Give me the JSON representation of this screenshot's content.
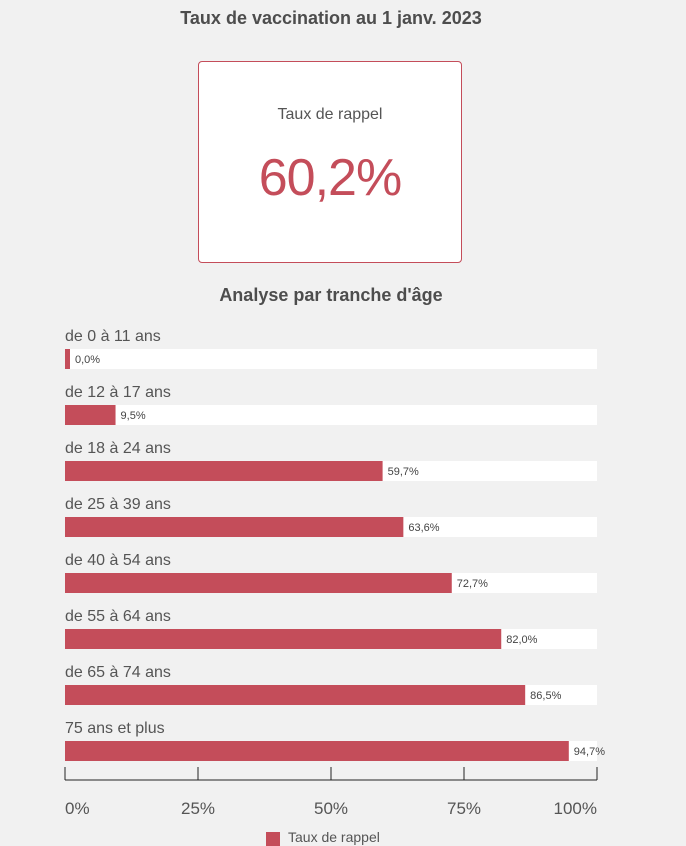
{
  "header": {
    "title": "Taux de vaccination au 1 janv. 2023"
  },
  "kpi": {
    "label": "Taux de rappel",
    "value": "60,2%"
  },
  "section": {
    "title": "Analyse par tranche d'âge"
  },
  "colors": {
    "accent": "#c44d5a",
    "track": "#ffffff",
    "background": "#f1f1f1"
  },
  "chart_data": {
    "type": "bar",
    "orientation": "horizontal",
    "categories": [
      "de 0 à 11 ans",
      "de 12 à 17 ans",
      "de 18 à 24 ans",
      "de 25 à 39 ans",
      "de 40 à 54 ans",
      "de 55 à 64 ans",
      "de 65 à 74 ans",
      "75 ans et plus"
    ],
    "values": [
      0.0,
      9.5,
      59.7,
      63.6,
      72.7,
      82.0,
      86.5,
      94.7
    ],
    "value_labels": [
      "0,0%",
      "9,5%",
      "59,7%",
      "63,6%",
      "72,7%",
      "82,0%",
      "86,5%",
      "94,7%"
    ],
    "xlim": [
      0,
      100
    ],
    "xticks": [
      0,
      25,
      50,
      75,
      100
    ],
    "xtick_labels": [
      "0%",
      "25%",
      "50%",
      "75%",
      "100%"
    ],
    "grid": false,
    "legend_position": "bottom"
  }
}
